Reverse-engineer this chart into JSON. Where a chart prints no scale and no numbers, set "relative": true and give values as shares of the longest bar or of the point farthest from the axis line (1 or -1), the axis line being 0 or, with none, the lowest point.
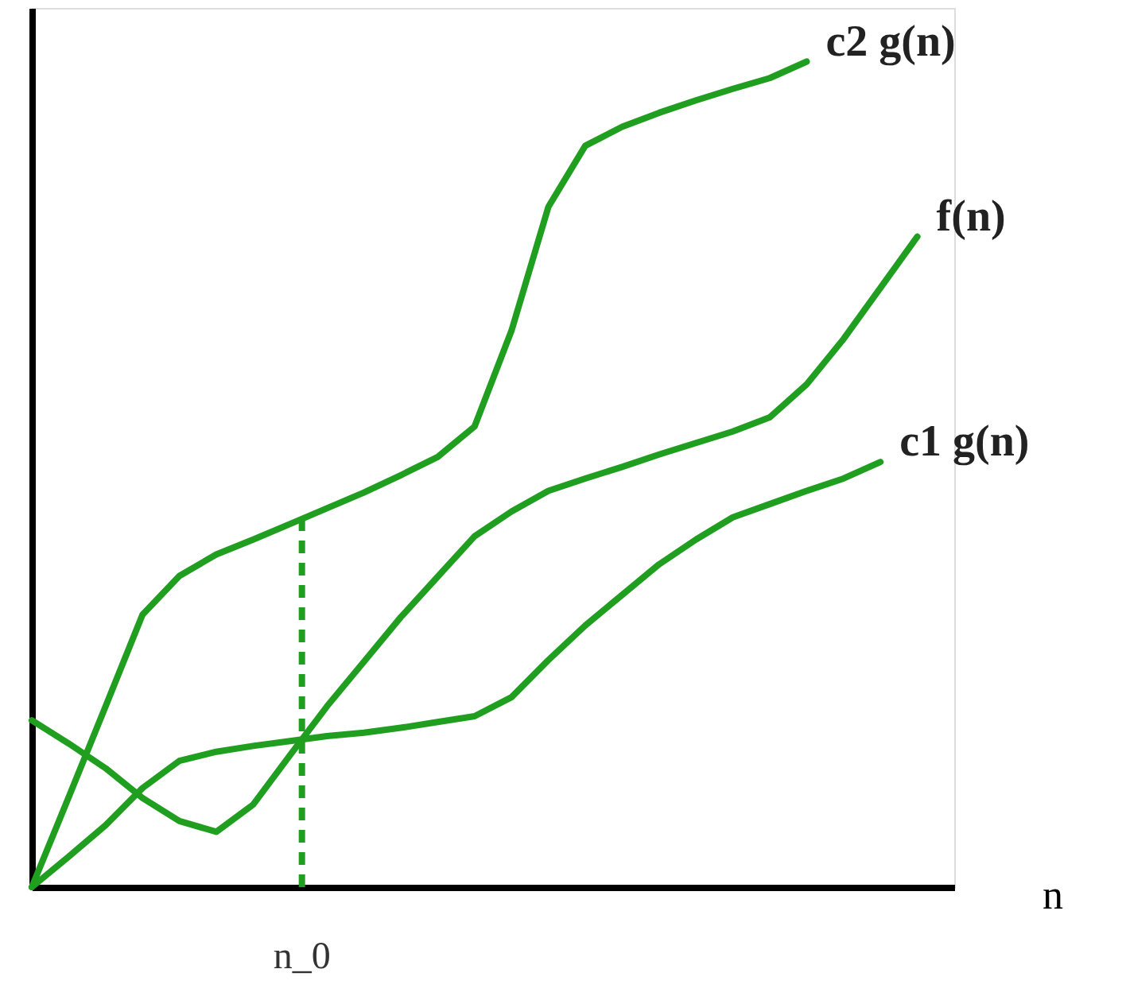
{
  "chart_data": {
    "type": "line",
    "relative": true,
    "xlabel": "n",
    "marker": "none",
    "line_style": "solid",
    "categories": [
      null,
      null,
      null,
      null,
      null,
      null,
      null,
      null,
      null,
      null,
      null,
      null,
      null,
      null,
      null,
      null,
      null,
      null,
      null,
      null,
      null,
      null,
      null,
      null,
      null
    ],
    "series": [
      {
        "name": "c2 g(n)",
        "color": "#1f9e1f",
        "values": [
          0,
          0.109,
          0.219,
          0.33,
          0.377,
          0.403,
          0.421,
          0.44,
          0.459,
          0.478,
          0.499,
          0.521,
          0.558,
          0.674,
          0.824,
          0.898,
          0.921,
          0.938,
          0.953,
          0.967,
          0.98,
          1,
          null,
          null,
          null
        ]
      },
      {
        "name": "f(n)",
        "color": "#1f9e1f",
        "values": [
          0.202,
          0.174,
          0.144,
          0.108,
          0.08,
          0.067,
          0.1,
          0.16,
          0.219,
          0.273,
          0.327,
          0.376,
          0.425,
          0.455,
          0.48,
          0.495,
          0.509,
          0.524,
          0.538,
          0.552,
          0.569,
          0.609,
          0.664,
          0.726,
          0.788
        ]
      },
      {
        "name": "c1 g(n)",
        "color": "#1f9e1f",
        "values": [
          0,
          0.037,
          0.075,
          0.12,
          0.153,
          0.164,
          0.171,
          0.177,
          0.183,
          0.187,
          0.193,
          0.2,
          0.207,
          0.23,
          0.275,
          0.317,
          0.354,
          0.391,
          0.421,
          0.448,
          0.464,
          0.48,
          0.495,
          0.515,
          null
        ]
      }
    ],
    "annotations": [
      "n_0"
    ]
  }
}
